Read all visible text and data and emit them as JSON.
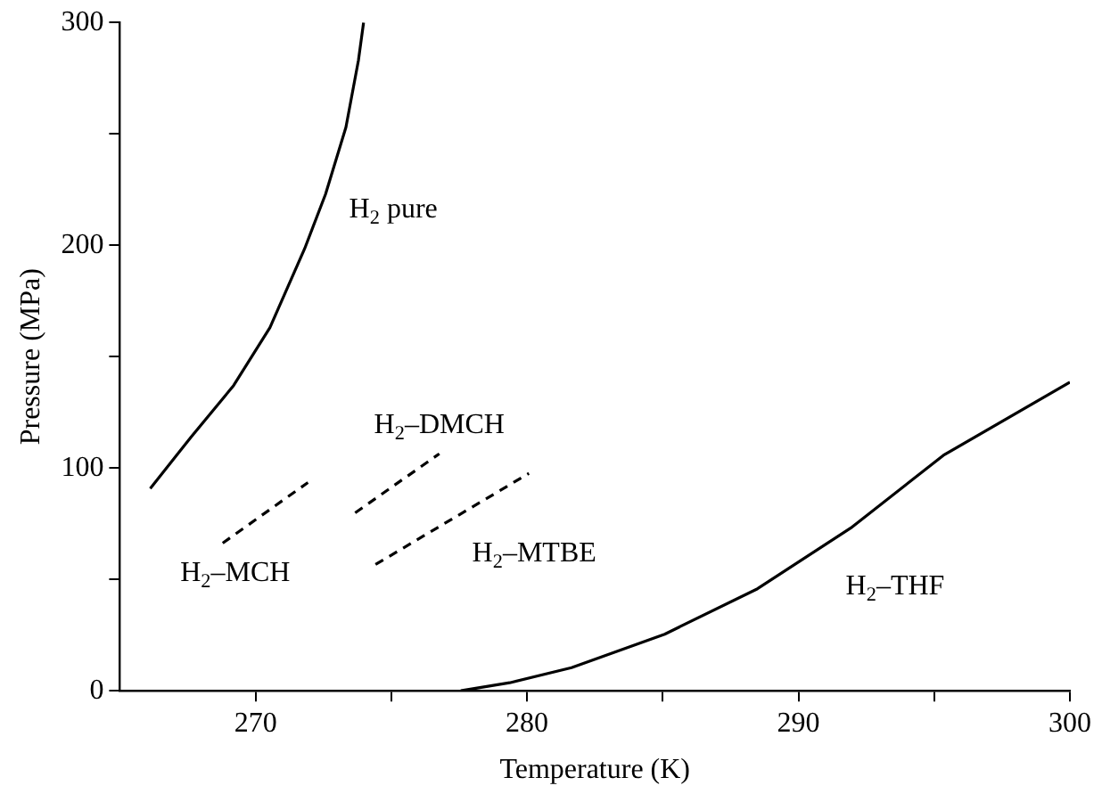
{
  "chart_data": {
    "type": "line",
    "xlabel": "Temperature (K)",
    "ylabel": "Pressure (MPa)",
    "xlim": [
      265,
      300
    ],
    "ylim": [
      0,
      300
    ],
    "xticks": [
      270,
      {
        "value": 275,
        "label": null
      },
      280,
      {
        "value": 285,
        "label": null
      },
      290,
      {
        "value": 295,
        "label": null
      },
      300
    ],
    "yticks": [
      0,
      {
        "value": 50,
        "label": null
      },
      100,
      {
        "value": 150,
        "label": null
      },
      200,
      {
        "value": 250,
        "label": null
      },
      300
    ],
    "grid": false,
    "legend": false,
    "marker": "none",
    "series": [
      {
        "name": "H$_{2}$ pure",
        "color": "#000000",
        "line_style": "solid",
        "x": [
          266.12,
          267.63,
          269.19,
          270.53,
          271.81,
          272.58,
          273.33,
          273.79,
          273.98
        ],
        "values": [
          90.8,
          114,
          137,
          163,
          198.5,
          223,
          253,
          283,
          300
        ]
      },
      {
        "name": "H$_{2}$–MCH",
        "color": "#000000",
        "line_style": "dashed",
        "x": [
          268.79,
          271.93
        ],
        "values": [
          66.3,
          93.5
        ]
      },
      {
        "name": "H$_{2}$–DMCH",
        "color": "#000000",
        "line_style": "dashed",
        "x": [
          273.67,
          276.77
        ],
        "values": [
          79.9,
          106.4
        ]
      },
      {
        "name": "H$_{2}$–MTBE",
        "color": "#000000",
        "line_style": "dashed",
        "x": [
          274.42,
          280.07
        ],
        "values": [
          56.7,
          97.6
        ]
      },
      {
        "name": "H$_{2}$–THF",
        "color": "#000000",
        "line_style": "solid",
        "x": [
          277.56,
          279.36,
          281.64,
          285.07,
          288.49,
          291.92,
          295.34,
          300
        ],
        "values": [
          0,
          3.6,
          10.4,
          25.4,
          45.8,
          73,
          105.7,
          138.5
        ]
      }
    ]
  }
}
